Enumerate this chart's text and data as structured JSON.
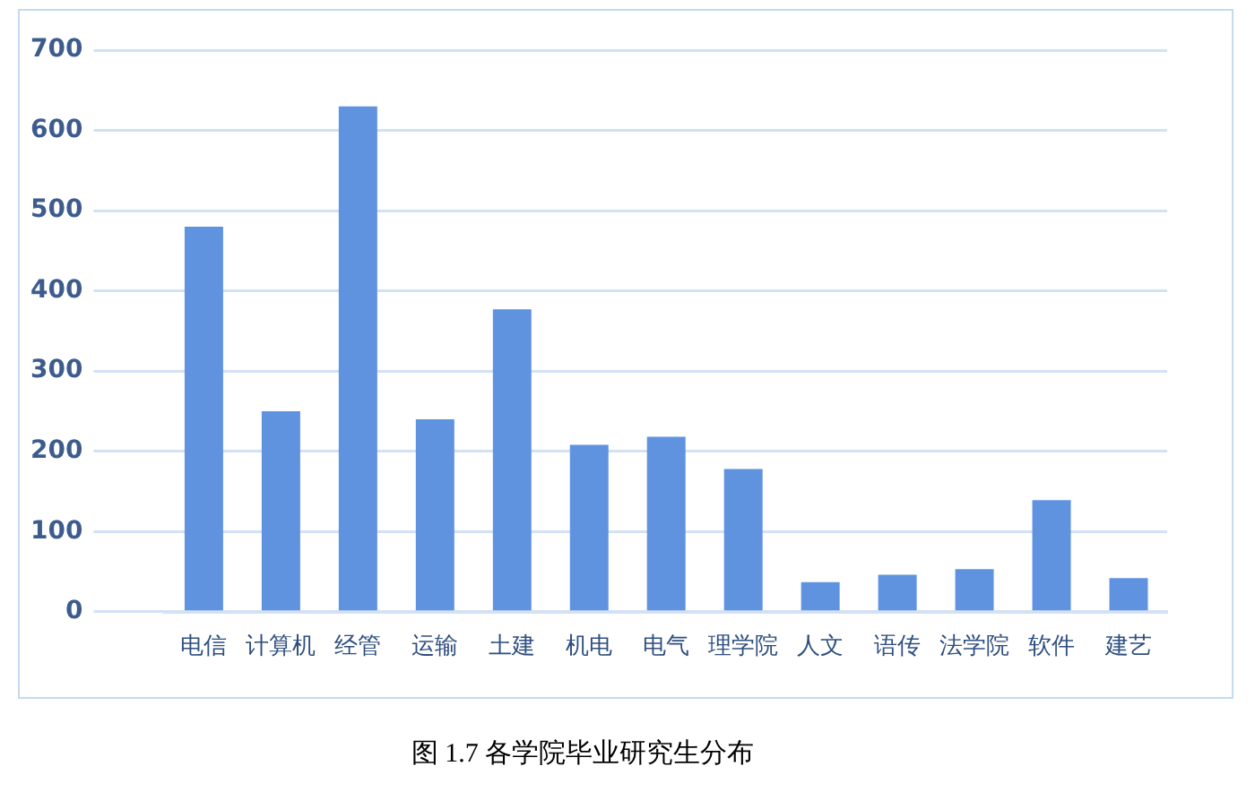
{
  "chart_data": {
    "type": "bar",
    "title": "图 1.7 各学院毕业研究生分布",
    "categories": [
      "电信",
      "计算机",
      "经管",
      "运输",
      "土建",
      "机电",
      "电气",
      "理学院",
      "人文",
      "语传",
      "法学院",
      "软件",
      "建艺"
    ],
    "values": [
      480,
      250,
      630,
      240,
      377,
      208,
      218,
      178,
      37,
      46,
      53,
      139,
      42
    ],
    "color": "#5f93e0",
    "ylim": [
      0,
      700
    ],
    "yticks": [
      0,
      100,
      200,
      300,
      400,
      500,
      600,
      700
    ],
    "grid": "y",
    "legend": false
  }
}
